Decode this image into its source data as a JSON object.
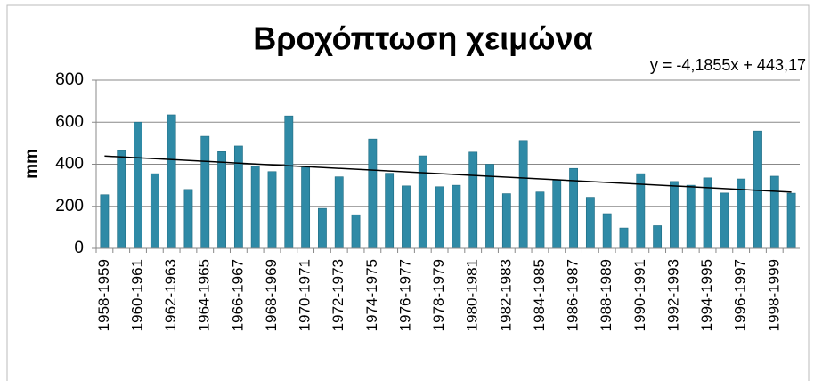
{
  "chart_data": {
    "type": "bar",
    "title": "Βροχόπτωση χειμώνα",
    "y_label": "mm",
    "categories": [
      "1958-1959",
      null,
      "1960-1961",
      null,
      "1962-1963",
      null,
      "1964-1965",
      null,
      "1966-1967",
      null,
      "1968-1969",
      null,
      "1970-1971",
      null,
      "1972-1973",
      null,
      "1974-1975",
      null,
      "1976-1977",
      null,
      "1978-1979",
      null,
      "1980-1981",
      null,
      "1982-1983",
      null,
      "1984-1985",
      null,
      "1986-1987",
      null,
      "1988-1989",
      null,
      "1990-1991",
      null,
      "1992-1993",
      null,
      "1994-1995",
      null,
      "1996-1997",
      null,
      "1998-1999",
      null
    ],
    "values": [
      255,
      465,
      600,
      355,
      635,
      280,
      533,
      460,
      487,
      390,
      365,
      630,
      385,
      190,
      340,
      160,
      520,
      357,
      297,
      440,
      293,
      300,
      458,
      400,
      260,
      513,
      268,
      323,
      380,
      243,
      165,
      97,
      355,
      108,
      318,
      300,
      335,
      263,
      330,
      558,
      343,
      262
    ],
    "color": "#2f8aa6",
    "trendline": {
      "label": "y = -4,1855x + 443,17",
      "slope": -4.1855,
      "intercept": 443.17
    },
    "ylim": [
      0,
      800
    ],
    "yticks": [
      0,
      200,
      400,
      600,
      800
    ],
    "grid": true
  }
}
